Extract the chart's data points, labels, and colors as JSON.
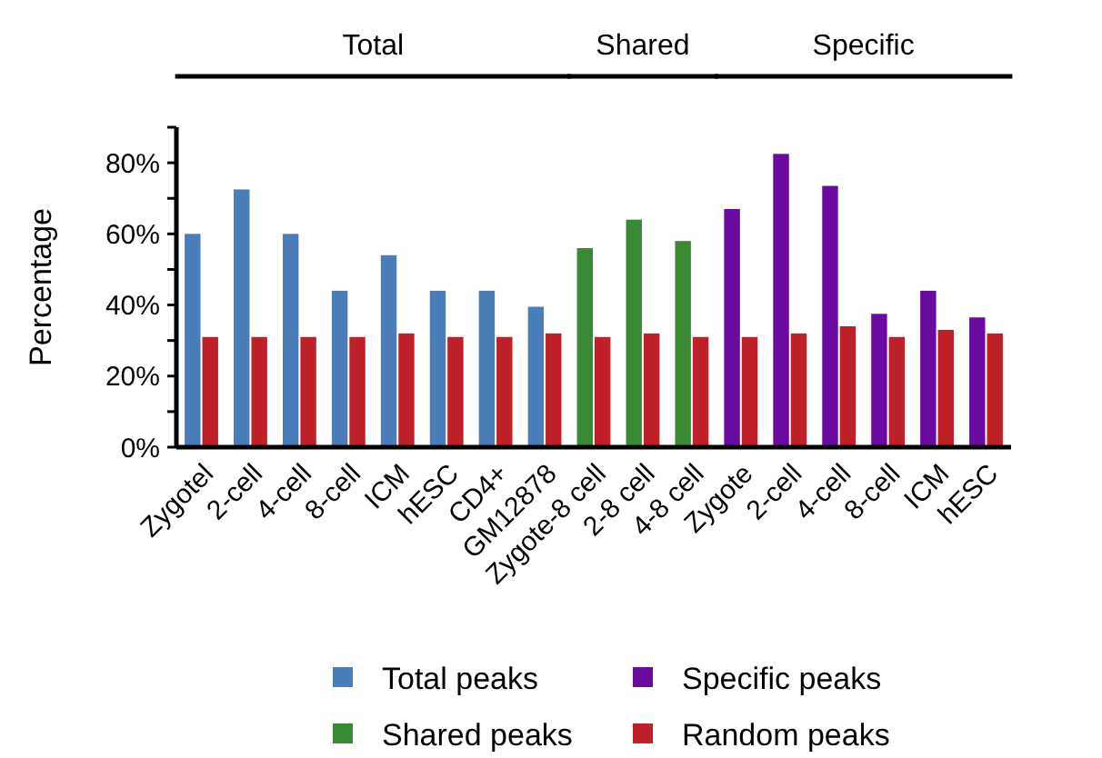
{
  "chart_data": {
    "type": "bar",
    "ylabel": "Percentage",
    "categories": [
      "Zygotel",
      "2-cell",
      "4-cell",
      "8-cell",
      "ICM",
      "hESC",
      "CD4+",
      "GM12878",
      "Zygote-8 cell",
      "2-8 cell",
      "4-8 cell",
      "Zygote",
      "2-cell",
      "4-cell",
      "8-cell",
      "ICM",
      "hESC"
    ],
    "series": [
      {
        "name": "Total peaks",
        "color": "#4a7ebb",
        "values": [
          60,
          72.5,
          60,
          44,
          54,
          44,
          44,
          39.5,
          null,
          null,
          null,
          null,
          null,
          null,
          null,
          null,
          null
        ]
      },
      {
        "name": "Shared peaks",
        "color": "#3a8a35",
        "values": [
          null,
          null,
          null,
          null,
          null,
          null,
          null,
          null,
          56,
          64,
          58,
          null,
          null,
          null,
          null,
          null,
          null
        ]
      },
      {
        "name": "Specific peaks",
        "color": "#6a0aa0",
        "values": [
          null,
          null,
          null,
          null,
          null,
          null,
          null,
          null,
          null,
          null,
          null,
          67,
          82.5,
          73.5,
          37.5,
          44,
          36.5
        ]
      },
      {
        "name": "Random peaks",
        "color": "#be2228",
        "values": [
          31,
          31,
          31,
          31,
          32,
          31,
          31,
          32,
          31,
          32,
          31,
          31,
          32,
          34,
          31,
          33,
          32
        ]
      }
    ],
    "annotations": [
      "Total",
      "Shared",
      "Specific"
    ],
    "ylim": [
      0,
      90
    ],
    "yticks": [
      {
        "value": 0,
        "label": "0%"
      },
      {
        "value": 10,
        "label": null
      },
      {
        "value": 20,
        "label": "20%"
      },
      {
        "value": 30,
        "label": null
      },
      {
        "value": 40,
        "label": "40%"
      },
      {
        "value": 50,
        "label": null
      },
      {
        "value": 60,
        "label": "60%"
      },
      {
        "value": 70,
        "label": null
      },
      {
        "value": 80,
        "label": "80%"
      },
      {
        "value": 90,
        "label": null
      }
    ],
    "legend": "bottom",
    "grid": false
  }
}
